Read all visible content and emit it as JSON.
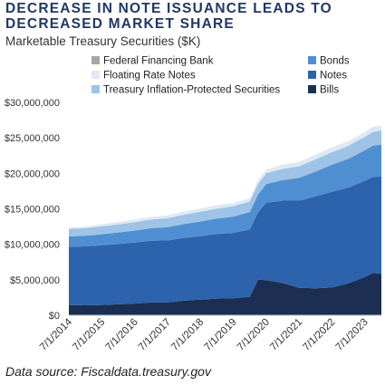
{
  "title": "DECREASE IN NOTE ISSUANCE LEADS TO DECREASED MARKET SHARE",
  "subtitle": "Marketable Treasury Securities ($K)",
  "source": "Data source: Fiscaldata.treasury.gov",
  "chart_data": {
    "type": "area",
    "stacked": true,
    "x": [
      "7/1/2014",
      "1/1/2015",
      "7/1/2015",
      "1/1/2016",
      "7/1/2016",
      "1/1/2017",
      "7/1/2017",
      "1/1/2018",
      "7/1/2018",
      "1/1/2019",
      "7/1/2019",
      "1/1/2020",
      "4/1/2020",
      "7/1/2020",
      "1/1/2021",
      "7/1/2021",
      "1/1/2022",
      "7/1/2022",
      "1/1/2023",
      "7/1/2023",
      "10/1/2023",
      "1/1/2024"
    ],
    "x_ticks": [
      "7/1/2014",
      "7/1/2015",
      "7/1/2016",
      "7/1/2017",
      "7/1/2018",
      "7/1/2019",
      "7/1/2020",
      "7/1/2021",
      "7/1/2022",
      "7/1/2023"
    ],
    "ylim": [
      0,
      30000000
    ],
    "y_ticks": [
      "$0",
      "$5,000,000",
      "$10,000,000",
      "$15,000,000",
      "$20,000,000",
      "$25,000,000",
      "$30,000,000"
    ],
    "grid": false,
    "legend_position": "top",
    "series": [
      {
        "name": "Bills",
        "color": "#1c2f52",
        "values": [
          1450000,
          1400000,
          1450000,
          1550000,
          1650000,
          1800000,
          1800000,
          2050000,
          2200000,
          2350000,
          2400000,
          2600000,
          5000000,
          4950000,
          4550000,
          3850000,
          3800000,
          3900000,
          4500000,
          5400000,
          5950000,
          5850000
        ]
      },
      {
        "name": "Notes",
        "color": "#2d62ad",
        "values": [
          8200000,
          8300000,
          8400000,
          8500000,
          8600000,
          8700000,
          8750000,
          8850000,
          8950000,
          9100000,
          9200000,
          9500000,
          9500000,
          10900000,
          11600000,
          12300000,
          12950000,
          13500000,
          13500000,
          13550000,
          13550000,
          13700000
        ]
      },
      {
        "name": "Bonds",
        "color": "#4f8fd1",
        "values": [
          1450000,
          1500000,
          1560000,
          1620000,
          1690000,
          1770000,
          1850000,
          1950000,
          2060000,
          2180000,
          2300000,
          2450000,
          2500000,
          2650000,
          2900000,
          3200000,
          3500000,
          3800000,
          4050000,
          4300000,
          4400000,
          4500000
        ]
      },
      {
        "name": "Treasury Inflation-Protected Securities",
        "color": "#9ec3e6",
        "values": [
          1050000,
          1080000,
          1110000,
          1140000,
          1180000,
          1220000,
          1270000,
          1320000,
          1370000,
          1410000,
          1450000,
          1480000,
          1490000,
          1520000,
          1580000,
          1650000,
          1720000,
          1780000,
          1830000,
          1900000,
          1950000,
          2000000
        ]
      },
      {
        "name": "Floating Rate Notes",
        "color": "#dde9f6",
        "values": [
          150000,
          200000,
          260000,
          290000,
          320000,
          340000,
          360000,
          380000,
          400000,
          420000,
          440000,
          460000,
          470000,
          500000,
          550000,
          580000,
          600000,
          610000,
          620000,
          630000,
          640000,
          650000
        ]
      },
      {
        "name": "Federal Financing Bank",
        "color": "#a6a6a6",
        "values": [
          10000,
          10000,
          10000,
          10000,
          10000,
          10000,
          10000,
          10000,
          10000,
          10000,
          10000,
          10000,
          10000,
          10000,
          10000,
          10000,
          10000,
          10000,
          10000,
          10000,
          10000,
          10000
        ]
      }
    ],
    "legend": {
      "left": [
        "Federal Financing Bank",
        "Floating Rate Notes",
        "Treasury Inflation-Protected Securities"
      ],
      "right": [
        "Bonds",
        "Notes",
        "Bills"
      ]
    }
  }
}
